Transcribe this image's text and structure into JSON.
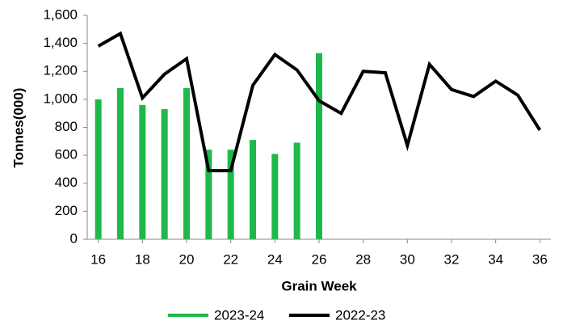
{
  "chart_data": {
    "type": "combo",
    "x_label": "Grain Week",
    "y_label": "Tonnes(000)",
    "series": [
      {
        "name": "2023-24",
        "type": "bar",
        "color": "#1fb84a",
        "x": [
          16,
          17,
          18,
          19,
          20,
          21,
          22,
          23,
          24,
          25,
          26
        ],
        "values": [
          1000,
          1080,
          960,
          930,
          1080,
          640,
          640,
          710,
          610,
          690,
          1330
        ]
      },
      {
        "name": "2022-23",
        "type": "line",
        "color": "#000000",
        "x": [
          16,
          17,
          18,
          19,
          20,
          21,
          22,
          23,
          24,
          25,
          26,
          27,
          28,
          29,
          30,
          31,
          32,
          33,
          34,
          35,
          36
        ],
        "values": [
          1380,
          1470,
          1010,
          1180,
          1290,
          490,
          490,
          1100,
          1320,
          1210,
          990,
          900,
          1200,
          1190,
          670,
          1250,
          1070,
          1020,
          1130,
          1030,
          780
        ]
      }
    ],
    "xlim": [
      15.5,
      36.5
    ],
    "xticks": [
      16,
      18,
      20,
      22,
      24,
      26,
      28,
      30,
      32,
      34,
      36
    ],
    "ylim": [
      0,
      1600
    ],
    "yticks": [
      0,
      200,
      400,
      600,
      800,
      {
        "value": 1000,
        "label": "1,000"
      },
      {
        "value": 1200,
        "label": "1,200"
      },
      {
        "value": 1400,
        "label": "1,400"
      },
      {
        "value": 1600,
        "label": "1,600"
      }
    ],
    "legend": "bottom",
    "grid": false
  }
}
